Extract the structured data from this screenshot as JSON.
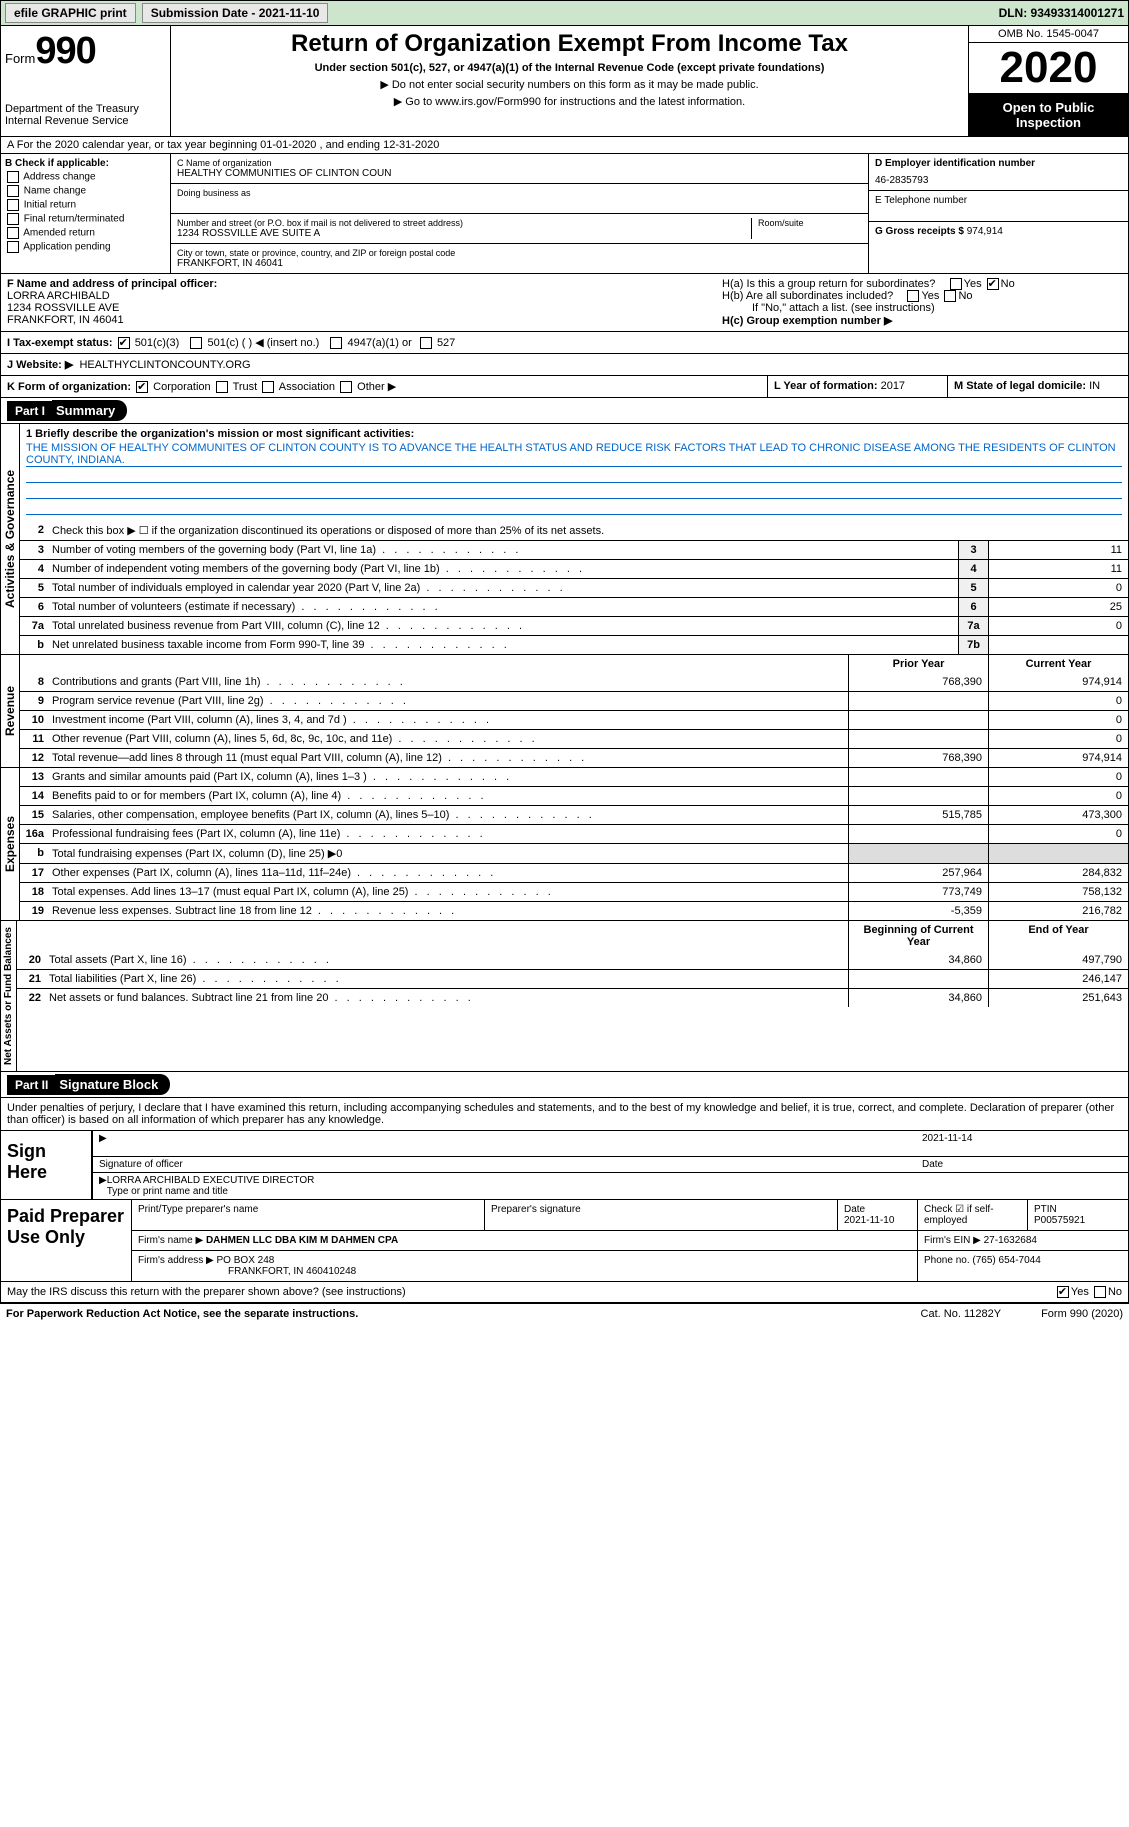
{
  "topbar": {
    "efile": "efile GRAPHIC print",
    "subdate_label": "Submission Date - ",
    "subdate": "2021-11-10",
    "dln": "DLN: 93493314001271"
  },
  "header": {
    "form": "Form",
    "num": "990",
    "dept": "Department of the Treasury\nInternal Revenue Service",
    "title": "Return of Organization Exempt From Income Tax",
    "sub": "Under section 501(c), 527, or 4947(a)(1) of the Internal Revenue Code (except private foundations)",
    "note1": "▶ Do not enter social security numbers on this form as it may be made public.",
    "note2": "▶ Go to www.irs.gov/Form990 for instructions and the latest information.",
    "omb": "OMB No. 1545-0047",
    "year": "2020",
    "open": "Open to Public Inspection"
  },
  "rowA": "A For the 2020 calendar year, or tax year beginning 01-01-2020   , and ending 12-31-2020",
  "boxB": {
    "label": "B Check if applicable:",
    "items": [
      "Address change",
      "Name change",
      "Initial return",
      "Final return/terminated",
      "Amended return",
      "Application pending"
    ]
  },
  "boxC": {
    "name_label": "C Name of organization",
    "name": "HEALTHY COMMUNITIES OF CLINTON COUN",
    "dba_label": "Doing business as",
    "addr_label": "Number and street (or P.O. box if mail is not delivered to street address)",
    "addr": "1234 ROSSVILLE AVE SUITE A",
    "room_label": "Room/suite",
    "city_label": "City or town, state or province, country, and ZIP or foreign postal code",
    "city": "FRANKFORT, IN  46041"
  },
  "boxD": {
    "label": "D Employer identification number",
    "val": "46-2835793"
  },
  "boxE": {
    "label": "E Telephone number",
    "val": ""
  },
  "boxG": {
    "label": "G Gross receipts $",
    "val": "974,914"
  },
  "boxF": {
    "label": "F Name and address of principal officer:",
    "name": "LORRA ARCHIBALD",
    "addr1": "1234 ROSSVILLE AVE",
    "addr2": "FRANKFORT, IN  46041"
  },
  "boxH": {
    "a": "H(a)  Is this a group return for subordinates?",
    "b": "H(b)  Are all subordinates included?",
    "note": "If \"No,\" attach a list. (see instructions)",
    "c": "H(c)  Group exemption number ▶"
  },
  "rowI": "I   Tax-exempt status:",
  "rowI_opts": [
    "501(c)(3)",
    "501(c) (  ) ◀ (insert no.)",
    "4947(a)(1) or",
    "527"
  ],
  "rowJ": {
    "label": "J   Website: ▶",
    "val": "HEALTHYCLINTONCOUNTY.ORG"
  },
  "rowK": "K Form of organization:",
  "rowK_opts": [
    "Corporation",
    "Trust",
    "Association",
    "Other ▶"
  ],
  "rowL": {
    "label": "L Year of formation:",
    "val": "2017"
  },
  "rowM": {
    "label": "M State of legal domicile:",
    "val": "IN"
  },
  "part1": {
    "hdr": "Part I",
    "title": "Summary"
  },
  "mission": {
    "label": "1   Briefly describe the organization's mission or most significant activities:",
    "text": "THE MISSION OF HEALTHY COMMUNITES OF CLINTON COUNTY IS TO ADVANCE THE HEALTH STATUS AND REDUCE RISK FACTORS THAT LEAD TO CHRONIC DISEASE AMONG THE RESIDENTS OF CLINTON COUNTY, INDIANA."
  },
  "gov_label": "Activities & Governance",
  "gov_lines": [
    {
      "n": "2",
      "d": "Check this box ▶ ☐  if the organization discontinued its operations or disposed of more than 25% of its net assets."
    },
    {
      "n": "3",
      "d": "Number of voting members of the governing body (Part VI, line 1a)",
      "b": "3",
      "v": "11"
    },
    {
      "n": "4",
      "d": "Number of independent voting members of the governing body (Part VI, line 1b)",
      "b": "4",
      "v": "11"
    },
    {
      "n": "5",
      "d": "Total number of individuals employed in calendar year 2020 (Part V, line 2a)",
      "b": "5",
      "v": "0"
    },
    {
      "n": "6",
      "d": "Total number of volunteers (estimate if necessary)",
      "b": "6",
      "v": "25"
    },
    {
      "n": "7a",
      "d": "Total unrelated business revenue from Part VIII, column (C), line 12",
      "b": "7a",
      "v": "0"
    },
    {
      "n": "b",
      "d": "Net unrelated business taxable income from Form 990-T, line 39",
      "b": "7b",
      "v": ""
    }
  ],
  "rev_label": "Revenue",
  "hdr_cols": {
    "py": "Prior Year",
    "cy": "Current Year"
  },
  "rev_lines": [
    {
      "n": "8",
      "d": "Contributions and grants (Part VIII, line 1h)",
      "py": "768,390",
      "cy": "974,914"
    },
    {
      "n": "9",
      "d": "Program service revenue (Part VIII, line 2g)",
      "py": "",
      "cy": "0"
    },
    {
      "n": "10",
      "d": "Investment income (Part VIII, column (A), lines 3, 4, and 7d )",
      "py": "",
      "cy": "0"
    },
    {
      "n": "11",
      "d": "Other revenue (Part VIII, column (A), lines 5, 6d, 8c, 9c, 10c, and 11e)",
      "py": "",
      "cy": "0"
    },
    {
      "n": "12",
      "d": "Total revenue—add lines 8 through 11 (must equal Part VIII, column (A), line 12)",
      "py": "768,390",
      "cy": "974,914"
    }
  ],
  "exp_label": "Expenses",
  "exp_lines": [
    {
      "n": "13",
      "d": "Grants and similar amounts paid (Part IX, column (A), lines 1–3 )",
      "py": "",
      "cy": "0"
    },
    {
      "n": "14",
      "d": "Benefits paid to or for members (Part IX, column (A), line 4)",
      "py": "",
      "cy": "0"
    },
    {
      "n": "15",
      "d": "Salaries, other compensation, employee benefits (Part IX, column (A), lines 5–10)",
      "py": "515,785",
      "cy": "473,300"
    },
    {
      "n": "16a",
      "d": "Professional fundraising fees (Part IX, column (A), line 11e)",
      "py": "",
      "cy": "0"
    },
    {
      "n": "b",
      "d": "Total fundraising expenses (Part IX, column (D), line 25) ▶0",
      "shade": true
    },
    {
      "n": "17",
      "d": "Other expenses (Part IX, column (A), lines 11a–11d, 11f–24e)",
      "py": "257,964",
      "cy": "284,832"
    },
    {
      "n": "18",
      "d": "Total expenses. Add lines 13–17 (must equal Part IX, column (A), line 25)",
      "py": "773,749",
      "cy": "758,132"
    },
    {
      "n": "19",
      "d": "Revenue less expenses. Subtract line 18 from line 12",
      "py": "-5,359",
      "cy": "216,782"
    }
  ],
  "na_label": "Net Assets or Fund Balances",
  "hdr_cols2": {
    "py": "Beginning of Current Year",
    "cy": "End of Year"
  },
  "na_lines": [
    {
      "n": "20",
      "d": "Total assets (Part X, line 16)",
      "py": "34,860",
      "cy": "497,790"
    },
    {
      "n": "21",
      "d": "Total liabilities (Part X, line 26)",
      "py": "",
      "cy": "246,147"
    },
    {
      "n": "22",
      "d": "Net assets or fund balances. Subtract line 21 from line 20",
      "py": "34,860",
      "cy": "251,643"
    }
  ],
  "part2": {
    "hdr": "Part II",
    "title": "Signature Block"
  },
  "penalty": "Under penalties of perjury, I declare that I have examined this return, including accompanying schedules and statements, and to the best of my knowledge and belief, it is true, correct, and complete. Declaration of preparer (other than officer) is based on all information of which preparer has any knowledge.",
  "sign": {
    "label": "Sign Here",
    "sig_label": "Signature of officer",
    "date_label": "Date",
    "date": "2021-11-14",
    "name": "LORRA ARCHIBALD  EXECUTIVE DIRECTOR",
    "name_label": "Type or print name and title"
  },
  "paid": {
    "label": "Paid Preparer Use Only",
    "h1": "Print/Type preparer's name",
    "h2": "Preparer's signature",
    "h3": "Date",
    "h3v": "2021-11-10",
    "h4": "Check ☑ if self-employed",
    "h5": "PTIN",
    "h5v": "P00575921",
    "firm_label": "Firm's name    ▶",
    "firm": "DAHMEN LLC DBA KIM M DAHMEN CPA",
    "ein_label": "Firm's EIN ▶",
    "ein": "27-1632684",
    "addr_label": "Firm's address ▶",
    "addr": "PO BOX 248",
    "addr2": "FRANKFORT, IN  460410248",
    "phone_label": "Phone no.",
    "phone": "(765) 654-7044"
  },
  "discuss": "May the IRS discuss this return with the preparer shown above? (see instructions)",
  "footer": {
    "l": "For Paperwork Reduction Act Notice, see the separate instructions.",
    "c": "Cat. No. 11282Y",
    "r": "Form 990 (2020)"
  }
}
